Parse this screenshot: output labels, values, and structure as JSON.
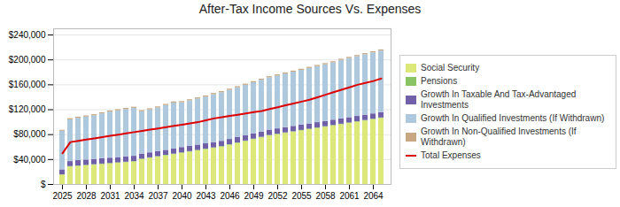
{
  "chart_data": {
    "type": "bar",
    "title": "After-Tax Income Sources Vs. Expenses",
    "stacked": true,
    "grid": true,
    "legend": "right",
    "categories": [
      "2025",
      null,
      null,
      "2028",
      null,
      null,
      "2031",
      null,
      null,
      "2034",
      null,
      null,
      "2037",
      null,
      null,
      "2040",
      null,
      null,
      "2043",
      null,
      null,
      "2046",
      null,
      null,
      "2049",
      null,
      null,
      "2052",
      null,
      null,
      "2055",
      null,
      null,
      "2058",
      null,
      null,
      "2061",
      null,
      null,
      "2064",
      null
    ],
    "series": [
      {
        "name": "Social Security",
        "type": "bar",
        "color": "#dde87a",
        "values": [
          15000,
          28000,
          29000,
          30000,
          31000,
          32000,
          33000,
          34000,
          35000,
          36000,
          40000,
          42000,
          44000,
          46000,
          48000,
          50000,
          52000,
          54000,
          56000,
          58000,
          60000,
          63000,
          66000,
          69000,
          72000,
          75000,
          78000,
          80000,
          82000,
          84000,
          86000,
          88000,
          90000,
          92000,
          94000,
          96000,
          98000,
          100000,
          102000,
          104000,
          106000
        ]
      },
      {
        "name": "Pensions",
        "type": "bar",
        "color": "#88c464",
        "values": [
          500,
          800,
          800,
          800,
          800,
          800,
          800,
          800,
          800,
          800,
          800,
          800,
          800,
          800,
          800,
          800,
          800,
          800,
          800,
          800,
          800,
          800,
          800,
          800,
          800,
          800,
          800,
          800,
          800,
          800,
          800,
          800,
          800,
          800,
          800,
          800,
          800,
          800,
          800,
          800,
          800
        ]
      },
      {
        "name": "Growth In Taxable And Tax-Advantaged Investments",
        "type": "bar",
        "color": "#7060a8",
        "values": [
          8000,
          8000,
          8500,
          8500,
          8500,
          8500,
          8500,
          8500,
          8500,
          8500,
          8000,
          8000,
          8000,
          8000,
          8000,
          8500,
          8500,
          8500,
          8500,
          8500,
          8500,
          8500,
          8500,
          8500,
          8500,
          8500,
          8500,
          8500,
          8500,
          8500,
          8500,
          8500,
          8500,
          8500,
          8500,
          8500,
          8500,
          8500,
          8500,
          8500,
          8500
        ]
      },
      {
        "name": "Growth In Qualified Investments (If Withdrawn)",
        "type": "bar",
        "color": "#aec8de",
        "values": [
          62000,
          67000,
          68000,
          69000,
          70000,
          72000,
          74000,
          75000,
          76000,
          77000,
          68000,
          69000,
          70000,
          72000,
          74000,
          72000,
          73000,
          74000,
          75000,
          77000,
          78000,
          79000,
          80000,
          81000,
          82000,
          83000,
          84000,
          85000,
          86000,
          87000,
          88000,
          89000,
          90000,
          91000,
          92000,
          94000,
          95000,
          96000,
          97000,
          98000,
          99000
        ]
      },
      {
        "name": "Growth In Non-Qualified Investments (If Withdrawn)",
        "type": "bar",
        "color": "#c8a882",
        "values": [
          1500,
          1800,
          1800,
          1800,
          1800,
          1800,
          1800,
          1800,
          1800,
          1800,
          1800,
          1800,
          1800,
          1800,
          1800,
          1800,
          1800,
          1800,
          1800,
          1800,
          1800,
          1800,
          1800,
          1800,
          1800,
          1800,
          1800,
          1800,
          1800,
          1800,
          1800,
          1800,
          1800,
          1800,
          1800,
          1800,
          1800,
          1800,
          1800,
          1800,
          1800
        ]
      },
      {
        "name": "Total Expenses",
        "type": "line",
        "color": "#dd0000",
        "values": [
          50000,
          68000,
          70000,
          72000,
          74000,
          76000,
          78000,
          80000,
          82000,
          84000,
          86000,
          88000,
          90000,
          92000,
          94000,
          96000,
          98000,
          100000,
          103000,
          106000,
          108000,
          110000,
          112000,
          114000,
          116000,
          118000,
          121000,
          124000,
          127000,
          130000,
          133000,
          136000,
          140000,
          144000,
          148000,
          152000,
          156000,
          160000,
          163000,
          166000,
          170000
        ]
      }
    ],
    "ylim": [
      0,
      250000
    ],
    "yticks": [
      {
        "value": 0,
        "label": "$"
      },
      {
        "value": 40000,
        "label": "$40,000"
      },
      {
        "value": 80000,
        "label": "$80,000"
      },
      {
        "value": 120000,
        "label": "$120,000"
      },
      {
        "value": 160000,
        "label": "$160,000"
      },
      {
        "value": 200000,
        "label": "$200,000"
      },
      {
        "value": 240000,
        "label": "$240,000"
      }
    ]
  }
}
